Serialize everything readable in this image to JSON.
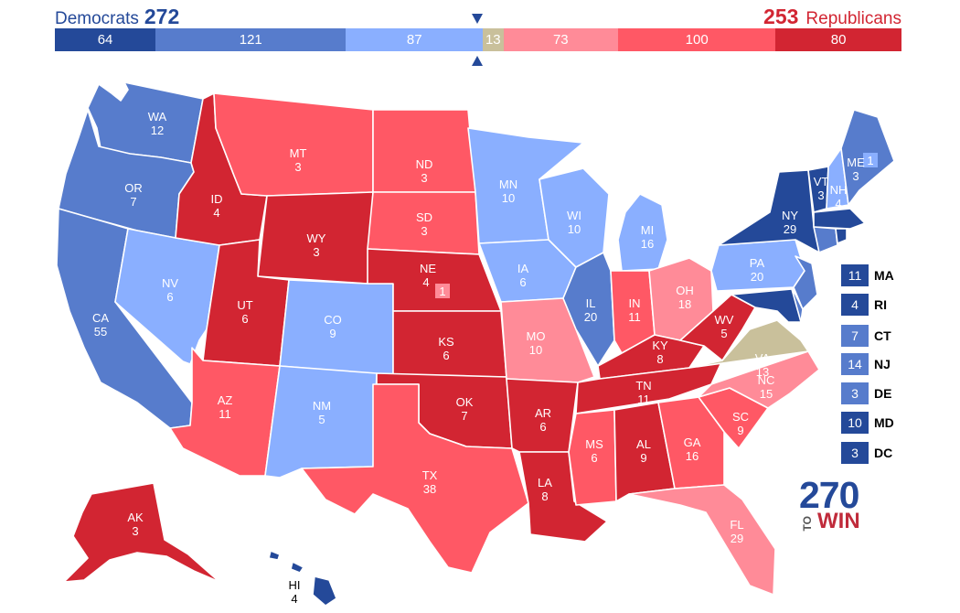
{
  "header": {
    "dem_name": "Democrats",
    "dem_total": "272",
    "rep_total": "253",
    "rep_name": "Republicans"
  },
  "bar": [
    {
      "value": 64,
      "label": "64",
      "color": "#244999"
    },
    {
      "value": 121,
      "label": "121",
      "color": "#577ccc"
    },
    {
      "value": 87,
      "label": "87",
      "color": "#8aafff"
    },
    {
      "value": 13,
      "label": "13",
      "color": "#c9c09b"
    },
    {
      "value": 73,
      "label": "73",
      "color": "#ff8b98"
    },
    {
      "value": 100,
      "label": "100",
      "color": "#ff5865"
    },
    {
      "value": 80,
      "label": "80",
      "color": "#d22532"
    }
  ],
  "legend_colors": {
    "safe_dem": "#244999",
    "likely_dem": "#577ccc",
    "lean_dem": "#8aafff",
    "tossup": "#c9c09b",
    "lean_rep": "#ff8b98",
    "likely_rep": "#ff5865",
    "safe_rep": "#d22532"
  },
  "states": [
    {
      "abbr": "WA",
      "ev": "12"
    },
    {
      "abbr": "OR",
      "ev": "7"
    },
    {
      "abbr": "CA",
      "ev": "55"
    },
    {
      "abbr": "NV",
      "ev": "6"
    },
    {
      "abbr": "ID",
      "ev": "4"
    },
    {
      "abbr": "MT",
      "ev": "3"
    },
    {
      "abbr": "WY",
      "ev": "3"
    },
    {
      "abbr": "UT",
      "ev": "6"
    },
    {
      "abbr": "AZ",
      "ev": "11"
    },
    {
      "abbr": "CO",
      "ev": "9"
    },
    {
      "abbr": "NM",
      "ev": "5"
    },
    {
      "abbr": "ND",
      "ev": "3"
    },
    {
      "abbr": "SD",
      "ev": "3"
    },
    {
      "abbr": "NE",
      "ev": "4"
    },
    {
      "abbr": "KS",
      "ev": "6"
    },
    {
      "abbr": "OK",
      "ev": "7"
    },
    {
      "abbr": "TX",
      "ev": "38"
    },
    {
      "abbr": "MN",
      "ev": "10"
    },
    {
      "abbr": "IA",
      "ev": "6"
    },
    {
      "abbr": "MO",
      "ev": "10"
    },
    {
      "abbr": "AR",
      "ev": "6"
    },
    {
      "abbr": "LA",
      "ev": "8"
    },
    {
      "abbr": "WI",
      "ev": "10"
    },
    {
      "abbr": "IL",
      "ev": "20"
    },
    {
      "abbr": "MI",
      "ev": "16"
    },
    {
      "abbr": "IN",
      "ev": "11"
    },
    {
      "abbr": "OH",
      "ev": "18"
    },
    {
      "abbr": "KY",
      "ev": "8"
    },
    {
      "abbr": "TN",
      "ev": "11"
    },
    {
      "abbr": "MS",
      "ev": "6"
    },
    {
      "abbr": "AL",
      "ev": "9"
    },
    {
      "abbr": "GA",
      "ev": "16"
    },
    {
      "abbr": "FL",
      "ev": "29"
    },
    {
      "abbr": "SC",
      "ev": "9"
    },
    {
      "abbr": "NC",
      "ev": "15"
    },
    {
      "abbr": "VA",
      "ev": "13"
    },
    {
      "abbr": "WV",
      "ev": "5"
    },
    {
      "abbr": "PA",
      "ev": "20"
    },
    {
      "abbr": "NY",
      "ev": "29"
    },
    {
      "abbr": "VT",
      "ev": "3"
    },
    {
      "abbr": "NH",
      "ev": "4"
    },
    {
      "abbr": "ME",
      "ev": "3"
    },
    {
      "abbr": "AK",
      "ev": "3"
    },
    {
      "abbr": "HI",
      "ev": "4"
    }
  ],
  "split_votes": {
    "ne_district": "1",
    "me_district": "1"
  },
  "small_states": [
    {
      "abbr": "MA",
      "ev": "11"
    },
    {
      "abbr": "RI",
      "ev": "4"
    },
    {
      "abbr": "CT",
      "ev": "7"
    },
    {
      "abbr": "NJ",
      "ev": "14"
    },
    {
      "abbr": "DE",
      "ev": "3"
    },
    {
      "abbr": "MD",
      "ev": "10"
    },
    {
      "abbr": "DC",
      "ev": "3"
    }
  ],
  "logo": {
    "number": "270",
    "to": "TO",
    "win": "WIN"
  }
}
